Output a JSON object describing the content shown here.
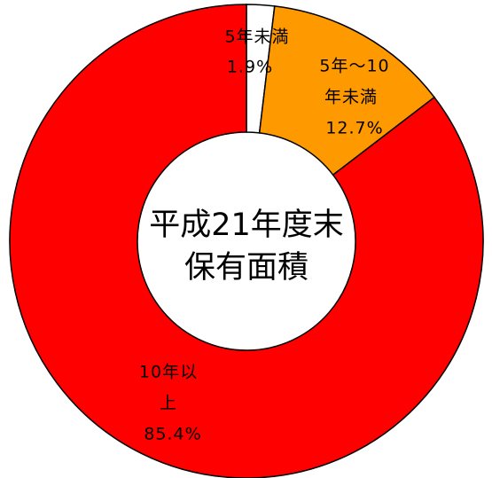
{
  "chart_data": {
    "type": "donut",
    "center_text": [
      "平成21年度末",
      "保有面積"
    ],
    "categories": [
      [
        "5年未満"
      ],
      [
        "5年～10",
        "年未満"
      ],
      [
        "10年以",
        "上"
      ]
    ],
    "values": [
      1.9,
      12.7,
      85.4
    ],
    "value_labels": [
      "1.9%",
      "12.7%",
      "85.4%"
    ],
    "colors": [
      "#ffffff",
      "#ff9900",
      "#ff0000"
    ]
  }
}
